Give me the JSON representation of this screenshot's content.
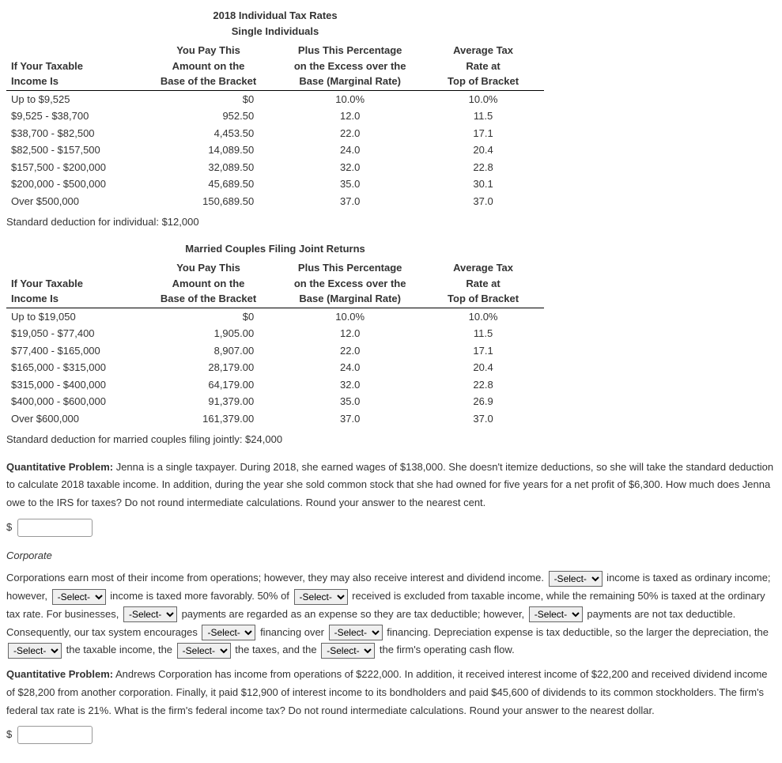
{
  "mainTitle": "2018 Individual Tax Rates",
  "singleTitle": "Single Individuals",
  "headers": {
    "col1a": "If Your Taxable",
    "col1b": "Income Is",
    "col2a": "You Pay This",
    "col2b": "Amount on the",
    "col2c": "Base of the Bracket",
    "col3a": "Plus This Percentage",
    "col3b": "on the Excess over the",
    "col3c": "Base (Marginal Rate)",
    "col4a": "Average Tax",
    "col4b": "Rate at",
    "col4c": "Top of Bracket"
  },
  "singleRows": [
    {
      "income": "Up to $9,525",
      "base": "$0",
      "rate": "10.0%",
      "avg": "10.0%"
    },
    {
      "income": "$9,525 - $38,700",
      "base": "952.50",
      "rate": "12.0",
      "avg": "11.5"
    },
    {
      "income": "$38,700 - $82,500",
      "base": "4,453.50",
      "rate": "22.0",
      "avg": "17.1"
    },
    {
      "income": "$82,500 - $157,500",
      "base": "14,089.50",
      "rate": "24.0",
      "avg": "20.4"
    },
    {
      "income": "$157,500 - $200,000",
      "base": "32,089.50",
      "rate": "32.0",
      "avg": "22.8"
    },
    {
      "income": "$200,000 - $500,000",
      "base": "45,689.50",
      "rate": "35.0",
      "avg": "30.1"
    },
    {
      "income": "Over $500,000",
      "base": "150,689.50",
      "rate": "37.0",
      "avg": "37.0"
    }
  ],
  "singleFootnote": "Standard deduction for individual: $12,000",
  "marriedTitle": "Married Couples Filing Joint Returns",
  "marriedRows": [
    {
      "income": "Up to $19,050",
      "base": "$0",
      "rate": "10.0%",
      "avg": "10.0%"
    },
    {
      "income": "$19,050 - $77,400",
      "base": "1,905.00",
      "rate": "12.0",
      "avg": "11.5"
    },
    {
      "income": "$77,400 - $165,000",
      "base": "8,907.00",
      "rate": "22.0",
      "avg": "17.1"
    },
    {
      "income": "$165,000 - $315,000",
      "base": "28,179.00",
      "rate": "24.0",
      "avg": "20.4"
    },
    {
      "income": "$315,000 - $400,000",
      "base": "64,179.00",
      "rate": "32.0",
      "avg": "22.8"
    },
    {
      "income": "$400,000 - $600,000",
      "base": "91,379.00",
      "rate": "35.0",
      "avg": "26.9"
    },
    {
      "income": "Over $600,000",
      "base": "161,379.00",
      "rate": "37.0",
      "avg": "37.0"
    }
  ],
  "marriedFootnote": "Standard deduction for married couples filing jointly: $24,000",
  "qpLabel": "Quantitative Problem:",
  "qp1Text": " Jenna is a single taxpayer. During 2018, she earned wages of $138,000. She doesn't itemize deductions, so she will take the standard deduction to calculate 2018 taxable income. In addition, during the year she sold common stock that she had owned for five years for a net profit of $6,300. How much does Jenna owe to the IRS for taxes? Do not round intermediate calculations. Round your answer to the nearest cent.",
  "dollarSign": "$",
  "corporateHead": "Corporate",
  "corpText": {
    "t1": "Corporations earn most of their income from operations; however, they may also receive interest and dividend income. ",
    "t2": " income is taxed as ordinary income; however, ",
    "t3": " income is taxed more favorably. 50% of ",
    "t4": " received is excluded from taxable income, while the remaining 50% is taxed at the ordinary tax rate. For businesses, ",
    "t5": " payments are regarded as an expense so they are tax deductible; however, ",
    "t6": " payments are not tax deductible. Consequently, our tax system encourages ",
    "t7": " financing over ",
    "t8": " financing. Depreciation expense is tax deductible, so the larger the depreciation, the ",
    "t9": " the taxable income, the ",
    "t10": " the taxes, and the ",
    "t11": " the firm's operating cash flow."
  },
  "selectPlaceholder": "-Select-",
  "qp2Text": " Andrews Corporation has income from operations of $222,000. In addition, it received interest income of $22,200 and received dividend income of $28,200 from another corporation. Finally, it paid $12,900 of interest income to its bondholders and paid $45,600 of dividends to its common stockholders. The firm's federal tax rate is 21%. What is the firm's federal income tax? Do not round intermediate calculations. Round your answer to the nearest dollar."
}
